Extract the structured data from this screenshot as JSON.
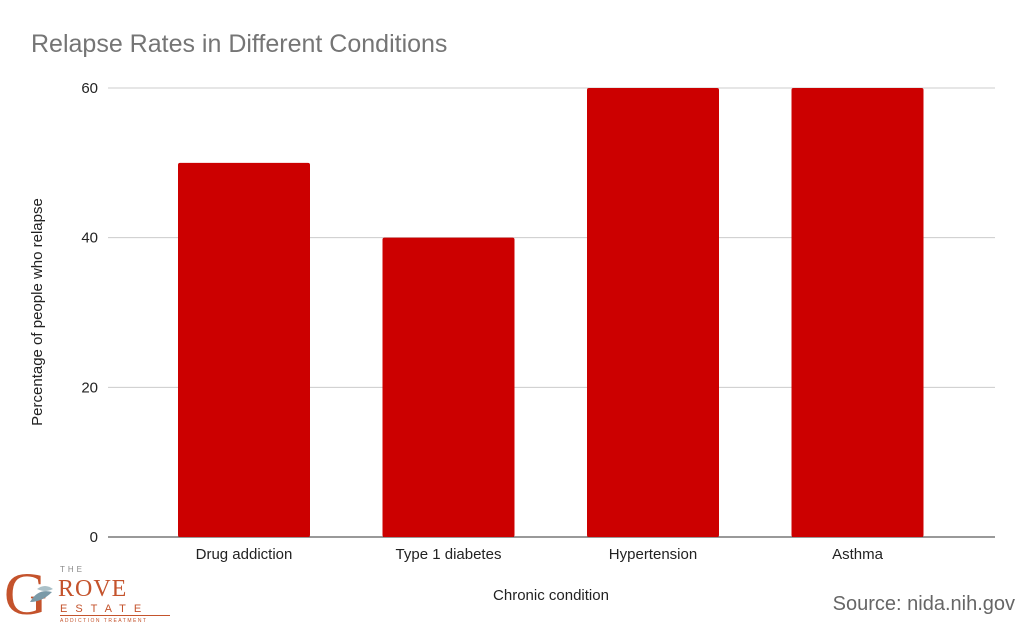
{
  "chart_data": {
    "type": "bar",
    "title": "Relapse Rates in Different Conditions",
    "xlabel": "Chronic condition",
    "ylabel": "Percentage of people who relapse",
    "categories": [
      "Drug addiction",
      "Type 1 diabetes",
      "Hypertension",
      "Asthma"
    ],
    "values": [
      50,
      40,
      60,
      60
    ],
    "ylim": [
      0,
      60
    ],
    "yticks": [
      0,
      20,
      40,
      60
    ],
    "grid": true,
    "bar_color": "#cc0000"
  },
  "source": "Source: nida.nih.gov",
  "logo": {
    "the": "THE",
    "name": "GROVE",
    "estate": "ESTATE",
    "tagline": "ADDICTION TREATMENT"
  }
}
